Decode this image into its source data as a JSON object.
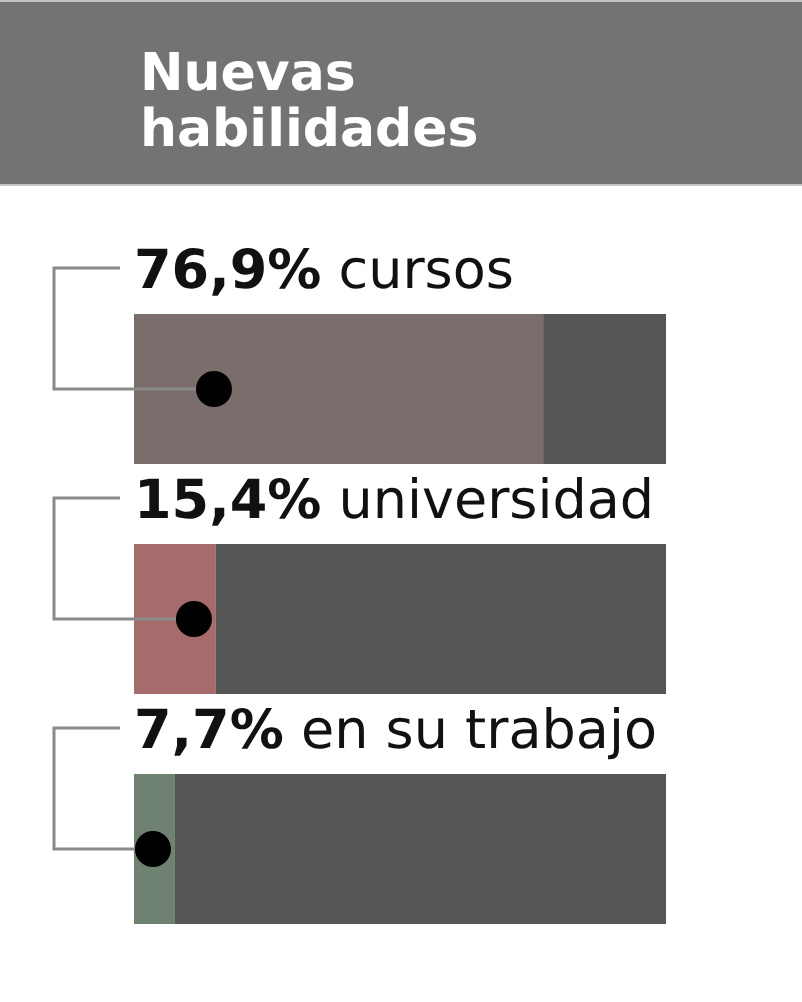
{
  "chart_data": {
    "type": "bar",
    "orientation": "horizontal",
    "stacked": true,
    "title": "Nuevas habilidades",
    "categories": [
      "cursos",
      "universidad",
      "en su trabajo"
    ],
    "series": [
      {
        "values": [
          76.9,
          15.4,
          7.7
        ],
        "colors": [
          "#7b6d6c",
          "#a66c6b",
          "#6f8272"
        ],
        "value_labels": [
          "76,9%",
          "15,4%",
          "7,7%"
        ]
      },
      {
        "values": [
          23.1,
          84.6,
          92.3
        ],
        "color": "#555555"
      }
    ],
    "xlim": [
      0,
      100
    ],
    "tick_labels": "y"
  }
}
